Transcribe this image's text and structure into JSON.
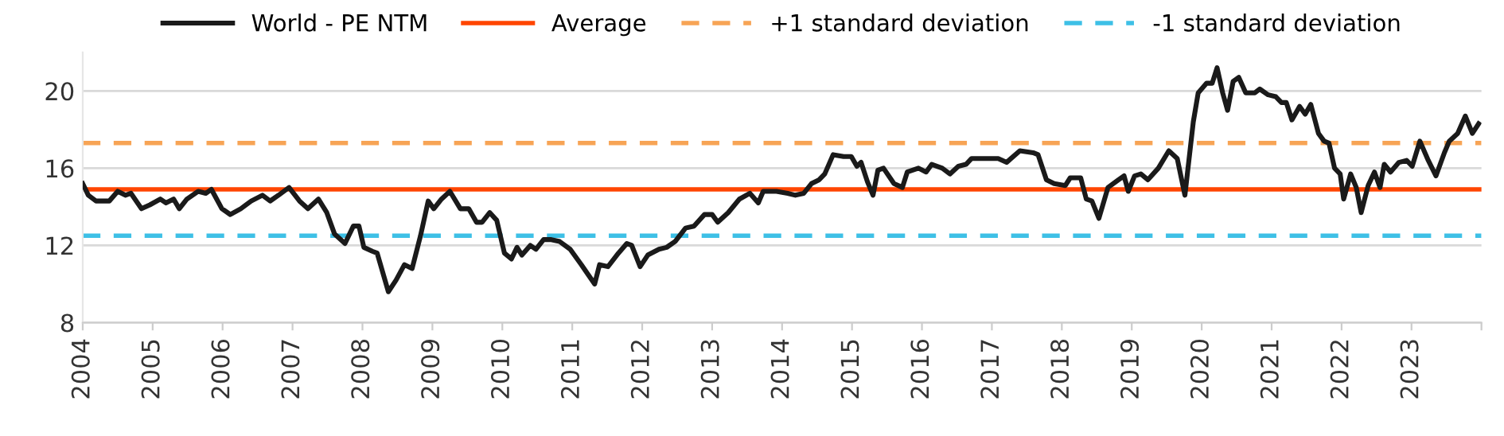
{
  "chart_data": {
    "type": "line",
    "x": [
      2004.0,
      2004.08,
      2004.19,
      2004.38,
      2004.5,
      2004.61,
      2004.69,
      2004.84,
      2004.96,
      2005.11,
      2005.19,
      2005.3,
      2005.38,
      2005.49,
      2005.65,
      2005.76,
      2005.84,
      2005.99,
      2006.11,
      2006.26,
      2006.41,
      2006.57,
      2006.68,
      2006.8,
      2006.95,
      2007.1,
      2007.22,
      2007.37,
      2007.49,
      2007.6,
      2007.75,
      2007.87,
      2007.95,
      2008.02,
      2008.14,
      2008.21,
      2008.37,
      2008.48,
      2008.6,
      2008.71,
      2008.83,
      2008.94,
      2009.02,
      2009.13,
      2009.25,
      2009.4,
      2009.52,
      2009.63,
      2009.71,
      2009.82,
      2009.92,
      2010.03,
      2010.13,
      2010.21,
      2010.28,
      2010.4,
      2010.48,
      2010.59,
      2010.7,
      2010.82,
      2010.97,
      2011.13,
      2011.32,
      2011.39,
      2011.51,
      2011.66,
      2011.78,
      2011.85,
      2011.97,
      2012.08,
      2012.24,
      2012.35,
      2012.47,
      2012.62,
      2012.74,
      2012.89,
      2013.0,
      2013.08,
      2013.23,
      2013.39,
      2013.54,
      2013.66,
      2013.73,
      2013.92,
      2014.08,
      2014.19,
      2014.31,
      2014.42,
      2014.53,
      2014.61,
      2014.73,
      2014.88,
      2014.99,
      2015.07,
      2015.13,
      2015.22,
      2015.3,
      2015.37,
      2015.45,
      2015.6,
      2015.72,
      2015.79,
      2015.95,
      2016.06,
      2016.14,
      2016.29,
      2016.4,
      2016.52,
      2016.63,
      2016.71,
      2016.9,
      2016.98,
      2017.09,
      2017.21,
      2017.4,
      2017.59,
      2017.66,
      2017.78,
      2017.89,
      2018.05,
      2018.12,
      2018.27,
      2018.35,
      2018.43,
      2018.53,
      2018.66,
      2018.81,
      2018.89,
      2018.95,
      2019.04,
      2019.13,
      2019.23,
      2019.38,
      2019.53,
      2019.65,
      2019.76,
      2019.88,
      2019.95,
      2020.07,
      2020.15,
      2020.22,
      2020.3,
      2020.37,
      2020.45,
      2020.53,
      2020.63,
      2020.76,
      2020.83,
      2020.95,
      2021.06,
      2021.14,
      2021.21,
      2021.29,
      2021.4,
      2021.48,
      2021.56,
      2021.67,
      2021.75,
      2021.82,
      2021.9,
      2021.98,
      2022.03,
      2022.13,
      2022.21,
      2022.28,
      2022.38,
      2022.47,
      2022.55,
      2022.61,
      2022.7,
      2022.82,
      2022.93,
      2023.01,
      2023.12,
      2023.24,
      2023.35,
      2023.47,
      2023.54,
      2023.66,
      2023.77,
      2023.87,
      2023.96
    ],
    "series": [
      {
        "name": "World - PE NTM",
        "color": "#1a1a1a",
        "values": [
          15.2,
          14.6,
          14.3,
          14.3,
          14.8,
          14.6,
          14.7,
          13.9,
          14.1,
          14.4,
          14.2,
          14.4,
          13.9,
          14.4,
          14.8,
          14.7,
          14.9,
          13.9,
          13.6,
          13.9,
          14.3,
          14.6,
          14.3,
          14.6,
          15.0,
          14.3,
          13.9,
          14.4,
          13.7,
          12.6,
          12.1,
          13.0,
          13.0,
          11.9,
          11.7,
          11.6,
          9.6,
          10.2,
          11.0,
          10.8,
          12.5,
          14.3,
          13.9,
          14.4,
          14.8,
          13.9,
          13.9,
          13.2,
          13.2,
          13.7,
          13.3,
          11.6,
          11.3,
          11.9,
          11.5,
          12.0,
          11.8,
          12.3,
          12.3,
          12.2,
          11.8,
          11.0,
          10.0,
          11.0,
          10.9,
          11.6,
          12.1,
          12.0,
          10.9,
          11.5,
          11.8,
          11.9,
          12.2,
          12.9,
          13.0,
          13.6,
          13.6,
          13.2,
          13.7,
          14.4,
          14.7,
          14.2,
          14.8,
          14.8,
          14.7,
          14.6,
          14.7,
          15.2,
          15.4,
          15.7,
          16.7,
          16.6,
          16.6,
          16.1,
          16.3,
          15.3,
          14.6,
          15.9,
          16.0,
          15.2,
          15.0,
          15.8,
          16.0,
          15.8,
          16.2,
          16.0,
          15.7,
          16.1,
          16.2,
          16.5,
          16.5,
          16.5,
          16.5,
          16.3,
          16.9,
          16.8,
          16.7,
          15.4,
          15.2,
          15.1,
          15.5,
          15.5,
          14.4,
          14.3,
          13.4,
          15.0,
          15.4,
          15.6,
          14.8,
          15.6,
          15.7,
          15.4,
          16.0,
          16.9,
          16.5,
          14.6,
          18.4,
          19.9,
          20.4,
          20.4,
          21.2,
          19.9,
          19.0,
          20.5,
          20.7,
          19.9,
          19.9,
          20.1,
          19.8,
          19.7,
          19.4,
          19.4,
          18.5,
          19.2,
          18.8,
          19.3,
          17.8,
          17.4,
          17.3,
          16.0,
          15.7,
          14.4,
          15.7,
          15.0,
          13.7,
          15.1,
          15.8,
          15.0,
          16.2,
          15.8,
          16.3,
          16.4,
          16.1,
          17.4,
          16.4,
          15.6,
          16.8,
          17.4,
          17.8,
          18.7,
          17.8,
          18.3
        ]
      }
    ],
    "ref_lines": [
      {
        "axis": "y",
        "value": 14.9,
        "label": "Average",
        "color": "#ff4500",
        "line_style": "solid"
      },
      {
        "axis": "y",
        "value": 17.3,
        "label": "+1 standard deviation",
        "color": "#f7a455",
        "line_style": "dashed"
      },
      {
        "axis": "y",
        "value": 12.5,
        "label": "-1 standard deviation",
        "color": "#3ec0e6",
        "line_style": "dashed"
      }
    ],
    "xlim": [
      2004,
      2024
    ],
    "xticks": [
      {
        "value": 2004,
        "label": "2004"
      },
      {
        "value": 2005,
        "label": "2005"
      },
      {
        "value": 2006,
        "label": "2006"
      },
      {
        "value": 2007,
        "label": "2007"
      },
      {
        "value": 2008,
        "label": "2008"
      },
      {
        "value": 2009,
        "label": "2009"
      },
      {
        "value": 2010,
        "label": "2010"
      },
      {
        "value": 2011,
        "label": "2011"
      },
      {
        "value": 2012,
        "label": "2012"
      },
      {
        "value": 2013,
        "label": "2013"
      },
      {
        "value": 2014,
        "label": "2014"
      },
      {
        "value": 2015,
        "label": "2015"
      },
      {
        "value": 2016,
        "label": "2016"
      },
      {
        "value": 2017,
        "label": "2017"
      },
      {
        "value": 2018,
        "label": "2018"
      },
      {
        "value": 2019,
        "label": "2019"
      },
      {
        "value": 2020,
        "label": "2020"
      },
      {
        "value": 2021,
        "label": "2021"
      },
      {
        "value": 2022,
        "label": "2022"
      },
      {
        "value": 2023,
        "label": "2023"
      },
      {
        "value": 2024,
        "label": null
      }
    ],
    "ylim": [
      8,
      22
    ],
    "yticks": [
      8,
      12,
      16,
      20
    ],
    "grid": "y",
    "legend": "top",
    "marker": "none",
    "line_style": "solid"
  }
}
